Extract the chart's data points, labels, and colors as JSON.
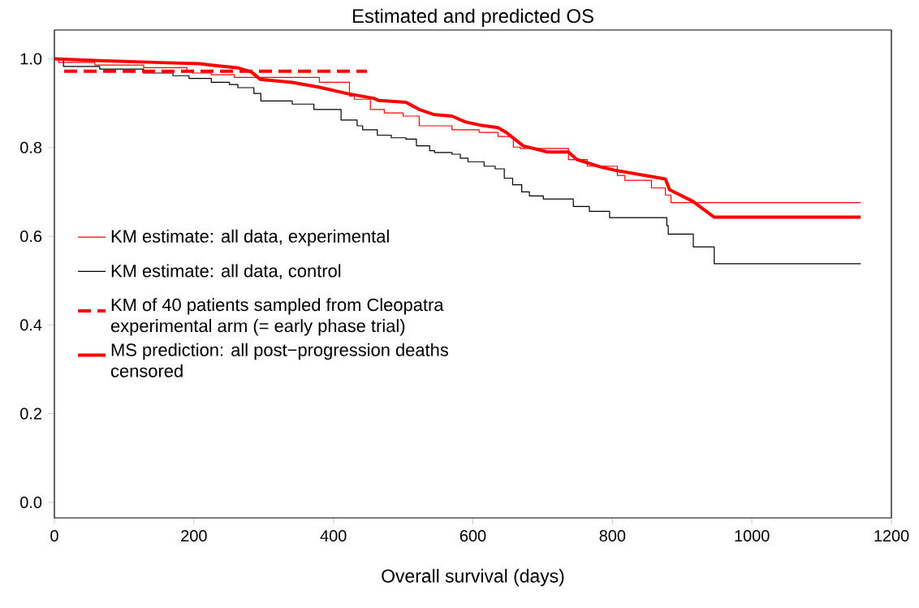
{
  "chart_data": {
    "type": "step",
    "title": "Estimated and predicted OS",
    "xlabel": "Overall survival (days)",
    "xlim": [
      0,
      1200
    ],
    "xticks": [
      0,
      200,
      400,
      600,
      800,
      1000,
      1200
    ],
    "ylim": [
      -0.035,
      1.065
    ],
    "yticks": [
      {
        "value": 0,
        "label": "0.0"
      },
      {
        "value": 0.2,
        "label": "0.2"
      },
      {
        "value": 0.4,
        "label": "0.4"
      },
      {
        "value": 0.6,
        "label": "0.6"
      },
      {
        "value": 0.8,
        "label": "0.8"
      },
      {
        "value": 1,
        "label": "1.0"
      }
    ],
    "grid": false,
    "legend": "left",
    "marker": "none",
    "series": [
      {
        "name": "KM estimate: all data, experimental",
        "color": "#ff0000",
        "line_style": "solid",
        "x": [
          0,
          6,
          58,
          128,
          190,
          198,
          225,
          258,
          380,
          423,
          430,
          453,
          473,
          500,
          523,
          570,
          609,
          636,
          658,
          668,
          737,
          764,
          807,
          818,
          856,
          876,
          884,
          1156
        ],
        "values": [
          1.0,
          0.992,
          0.986,
          0.98,
          0.974,
          0.968,
          0.964,
          0.958,
          0.947,
          0.916,
          0.909,
          0.886,
          0.878,
          0.871,
          0.849,
          0.84,
          0.834,
          0.825,
          0.801,
          0.798,
          0.773,
          0.758,
          0.737,
          0.726,
          0.709,
          0.693,
          0.676,
          0.676
        ]
      },
      {
        "name": "KM estimate: all data, control",
        "color": "#000000",
        "line_style": "solid",
        "x": [
          0,
          13,
          65,
          128,
          170,
          193,
          225,
          251,
          263,
          286,
          296,
          341,
          372,
          411,
          434,
          442,
          463,
          483,
          504,
          519,
          538,
          545,
          570,
          582,
          593,
          616,
          632,
          645,
          657,
          670,
          681,
          701,
          744,
          767,
          796,
          878,
          880,
          916,
          946,
          1156
        ],
        "values": [
          1.0,
          0.983,
          0.977,
          0.968,
          0.962,
          0.956,
          0.947,
          0.942,
          0.935,
          0.922,
          0.905,
          0.898,
          0.886,
          0.862,
          0.849,
          0.84,
          0.828,
          0.822,
          0.819,
          0.804,
          0.793,
          0.789,
          0.785,
          0.776,
          0.768,
          0.758,
          0.752,
          0.731,
          0.716,
          0.7,
          0.691,
          0.684,
          0.667,
          0.656,
          0.642,
          0.624,
          0.605,
          0.576,
          0.538,
          0.538
        ]
      },
      {
        "name": "KM of 40 patients sampled from Cleopatra experimental arm (= early phase trial)",
        "type": "line",
        "color": "#ff0000",
        "line_style": "dashed",
        "x": [
          14,
          448
        ],
        "values": [
          0.972,
          0.972
        ]
      },
      {
        "name": "MS prediction: all post−progression deaths censored",
        "type": "line",
        "color": "#ff0000",
        "line_style": "solid",
        "x": [
          0,
          66,
          144,
          209,
          225,
          262,
          282,
          295,
          341,
          380,
          419,
          458,
          465,
          504,
          523,
          545,
          570,
          589,
          609,
          636,
          648,
          672,
          707,
          737,
          749,
          784,
          803,
          876,
          882,
          915,
          946,
          1156
        ],
        "values": [
          1.0,
          0.996,
          0.992,
          0.989,
          0.986,
          0.98,
          0.971,
          0.954,
          0.947,
          0.936,
          0.922,
          0.911,
          0.906,
          0.902,
          0.886,
          0.874,
          0.871,
          0.858,
          0.851,
          0.845,
          0.834,
          0.804,
          0.79,
          0.79,
          0.773,
          0.756,
          0.749,
          0.729,
          0.705,
          0.679,
          0.643,
          0.643
        ]
      }
    ]
  }
}
